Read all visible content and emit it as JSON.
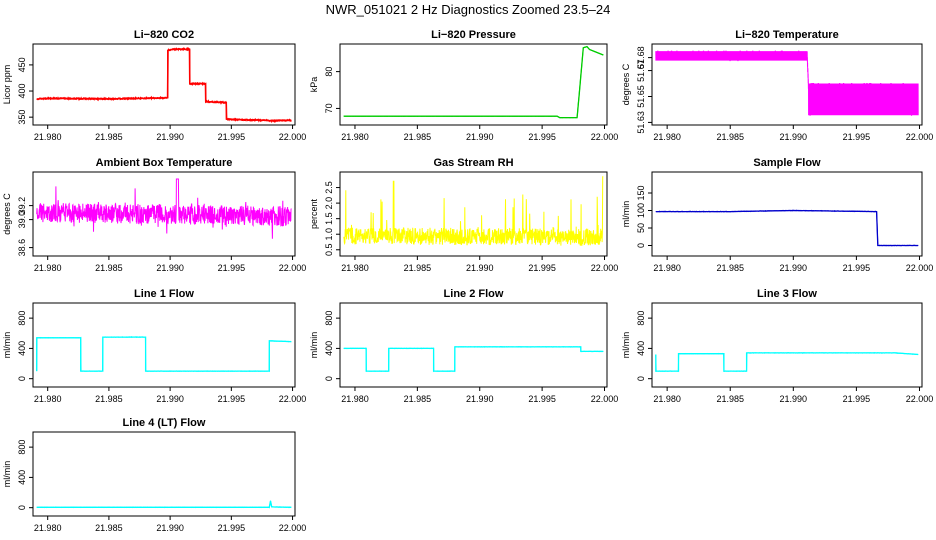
{
  "page": {
    "title": "NWR_051021  2 Hz Diagnostics Zoomed 23.5–24"
  },
  "chart_data": [
    {
      "type": "line",
      "title": "Li−820 CO2",
      "ylabel": "Licor ppm",
      "xlim": [
        21.9788,
        22.0002
      ],
      "ylim": [
        335,
        490
      ],
      "xticks": [
        21.98,
        21.985,
        21.99,
        21.995,
        22.0
      ],
      "xtick_labels": [
        "21.980",
        "21.985",
        "21.990",
        "21.995",
        "22.000"
      ],
      "yticks": [
        350,
        400,
        450
      ],
      "ytick_labels": [
        "350",
        "400",
        "450"
      ],
      "color": "#ff0000",
      "series": [
        {
          "name": "CO2",
          "x": [
            21.9791,
            21.98,
            21.985,
            21.9898,
            21.9898,
            21.9903,
            21.9916,
            21.9916,
            21.9929,
            21.9929,
            21.9935,
            21.9946,
            21.9946,
            21.996,
            21.9979,
            21.9982,
            21.9999
          ],
          "y": [
            385,
            386,
            385,
            387,
            478,
            480,
            480,
            414,
            414,
            380,
            379,
            378,
            346,
            345,
            344,
            343,
            344
          ]
        }
      ]
    },
    {
      "type": "line",
      "title": "Li−820 Pressure",
      "ylabel": "kPa",
      "xlim": [
        21.9788,
        22.0002
      ],
      "ylim": [
        65.5,
        87.5
      ],
      "xticks": [
        21.98,
        21.985,
        21.99,
        21.995,
        22.0
      ],
      "xtick_labels": [
        "21.980",
        "21.985",
        "21.990",
        "21.995",
        "22.000"
      ],
      "yticks": [
        70,
        80
      ],
      "ytick_labels": [
        "70",
        "80"
      ],
      "color": "#00cc00",
      "series": [
        {
          "name": "Pressure",
          "x": [
            21.9791,
            21.99,
            21.9962,
            21.9964,
            21.9978,
            21.998,
            21.9983,
            21.9986,
            21.9988,
            21.9999
          ],
          "y": [
            67.9,
            67.9,
            67.9,
            67.5,
            67.5,
            75,
            86.5,
            86.8,
            86.0,
            84.5
          ]
        }
      ]
    },
    {
      "type": "line",
      "title": "Li−820 Temperature",
      "ylabel": "degrees C",
      "xlim": [
        21.9788,
        22.0002
      ],
      "ylim": [
        51.628,
        51.6905
      ],
      "xticks": [
        21.98,
        21.985,
        21.99,
        21.995,
        22.0
      ],
      "xtick_labels": [
        "21.980",
        "21.985",
        "21.990",
        "21.995",
        "22.000"
      ],
      "yticks": [
        51.63,
        51.65,
        51.67,
        51.68
      ],
      "ytick_labels": [
        "51.63",
        "51.65",
        "51.67",
        "51.68"
      ],
      "color": "#ff00ff",
      "series": [
        {
          "name": "Temperature",
          "x": [
            21.9791,
            21.9911,
            21.9912,
            21.9999
          ],
          "y": [
            51.685,
            51.685,
            51.66,
            51.66
          ]
        }
      ]
    },
    {
      "type": "line",
      "title": "Ambient Box Temperature",
      "ylabel": "degrees C",
      "xlim": [
        21.9788,
        22.0002
      ],
      "ylim": [
        38.48,
        39.68
      ],
      "xticks": [
        21.98,
        21.985,
        21.99,
        21.995,
        22.0
      ],
      "xtick_labels": [
        "21.980",
        "21.985",
        "21.990",
        "21.995",
        "22.000"
      ],
      "yticks": [
        38.6,
        39.0,
        39.2
      ],
      "ytick_labels": [
        "38.6",
        "39.0",
        "39.2"
      ],
      "color": "#ff00ff",
      "series": [
        {
          "name": "Box Temperature",
          "x": [
            21.9791,
            21.9999
          ],
          "y": [
            39.1,
            39.05
          ]
        }
      ]
    },
    {
      "type": "line",
      "title": "Gas Stream RH",
      "ylabel": "percent",
      "xlim": [
        21.9788,
        22.0002
      ],
      "ylim": [
        0.3,
        3.0
      ],
      "xticks": [
        21.98,
        21.985,
        21.99,
        21.995,
        22.0
      ],
      "xtick_labels": [
        "21.980",
        "21.985",
        "21.990",
        "21.995",
        "22.000"
      ],
      "yticks": [
        0.5,
        1.0,
        1.5,
        2.0,
        2.5
      ],
      "ytick_labels": [
        "0.5",
        "1.0",
        "1.5",
        "2.0",
        "2.5"
      ],
      "color": "#ffff00",
      "series": [
        {
          "name": "RH",
          "x": [
            21.9791,
            21.9999
          ],
          "y": [
            0.95,
            0.9
          ]
        }
      ]
    },
    {
      "type": "line",
      "title": "Sample Flow",
      "ylabel": "ml/min",
      "xlim": [
        21.9788,
        22.0002
      ],
      "ylim": [
        -30,
        210
      ],
      "xticks": [
        21.98,
        21.985,
        21.99,
        21.995,
        22.0
      ],
      "xtick_labels": [
        "21.980",
        "21.985",
        "21.990",
        "21.995",
        "22.000"
      ],
      "yticks": [
        0,
        50,
        100,
        150
      ],
      "ytick_labels": [
        "0",
        "50",
        "100",
        "150"
      ],
      "color": "#0000cc",
      "series": [
        {
          "name": "Sample Flow",
          "x": [
            21.9791,
            21.985,
            21.99,
            21.9966,
            21.9967,
            21.9999
          ],
          "y": [
            97,
            97,
            100,
            97,
            0,
            0
          ]
        }
      ]
    },
    {
      "type": "line",
      "title": "Line 1 Flow",
      "ylabel": "ml/min",
      "xlim": [
        21.9788,
        22.0002
      ],
      "ylim": [
        -110,
        1000
      ],
      "xticks": [
        21.98,
        21.985,
        21.99,
        21.995,
        22.0
      ],
      "xtick_labels": [
        "21.980",
        "21.985",
        "21.990",
        "21.995",
        "22.000"
      ],
      "yticks": [
        0,
        400,
        800
      ],
      "ytick_labels": [
        "0",
        "400",
        "800"
      ],
      "color": "#00ffff",
      "series": [
        {
          "name": "Line 1",
          "x": [
            21.9791,
            21.9791,
            21.9827,
            21.9827,
            21.9845,
            21.9845,
            21.988,
            21.988,
            21.9981,
            21.9981,
            21.9999
          ],
          "y": [
            100,
            540,
            540,
            100,
            100,
            550,
            550,
            100,
            100,
            500,
            490
          ]
        }
      ]
    },
    {
      "type": "line",
      "title": "Line 2 Flow",
      "ylabel": "ml/min",
      "xlim": [
        21.9788,
        22.0002
      ],
      "ylim": [
        -110,
        1000
      ],
      "xticks": [
        21.98,
        21.985,
        21.99,
        21.995,
        22.0
      ],
      "xtick_labels": [
        "21.980",
        "21.985",
        "21.990",
        "21.995",
        "22.000"
      ],
      "yticks": [
        0,
        400,
        800
      ],
      "ytick_labels": [
        "0",
        "400",
        "800"
      ],
      "color": "#00ffff",
      "series": [
        {
          "name": "Line 2",
          "x": [
            21.9791,
            21.9809,
            21.9809,
            21.9827,
            21.9827,
            21.9863,
            21.9863,
            21.988,
            21.988,
            21.9981,
            21.9981,
            21.9999
          ],
          "y": [
            400,
            400,
            100,
            100,
            400,
            400,
            100,
            100,
            420,
            420,
            360,
            360
          ]
        }
      ]
    },
    {
      "type": "line",
      "title": "Line 3 Flow",
      "ylabel": "ml/min",
      "xlim": [
        21.9788,
        22.0002
      ],
      "ylim": [
        -110,
        1000
      ],
      "xticks": [
        21.98,
        21.985,
        21.99,
        21.995,
        22.0
      ],
      "xtick_labels": [
        "21.980",
        "21.985",
        "21.990",
        "21.995",
        "22.000"
      ],
      "yticks": [
        0,
        400,
        800
      ],
      "ytick_labels": [
        "0",
        "400",
        "800"
      ],
      "color": "#00ffff",
      "series": [
        {
          "name": "Line 3",
          "x": [
            21.9791,
            21.9791,
            21.9809,
            21.9809,
            21.9845,
            21.9845,
            21.9863,
            21.9863,
            21.9981,
            21.9999
          ],
          "y": [
            320,
            100,
            100,
            330,
            330,
            100,
            100,
            340,
            340,
            320
          ]
        }
      ]
    },
    {
      "type": "line",
      "title": "Line 4 (LT) Flow",
      "ylabel": "ml/min",
      "xlim": [
        21.9788,
        22.0002
      ],
      "ylim": [
        -110,
        1000
      ],
      "xticks": [
        21.98,
        21.985,
        21.99,
        21.995,
        22.0
      ],
      "xtick_labels": [
        "21.980",
        "21.985",
        "21.990",
        "21.995",
        "22.000"
      ],
      "yticks": [
        0,
        400,
        800
      ],
      "ytick_labels": [
        "0",
        "400",
        "800"
      ],
      "color": "#00ffff",
      "series": [
        {
          "name": "Line 4",
          "x": [
            21.9791,
            21.9981,
            21.9982,
            21.9983,
            21.9999
          ],
          "y": [
            5,
            5,
            90,
            10,
            5
          ]
        }
      ]
    }
  ]
}
